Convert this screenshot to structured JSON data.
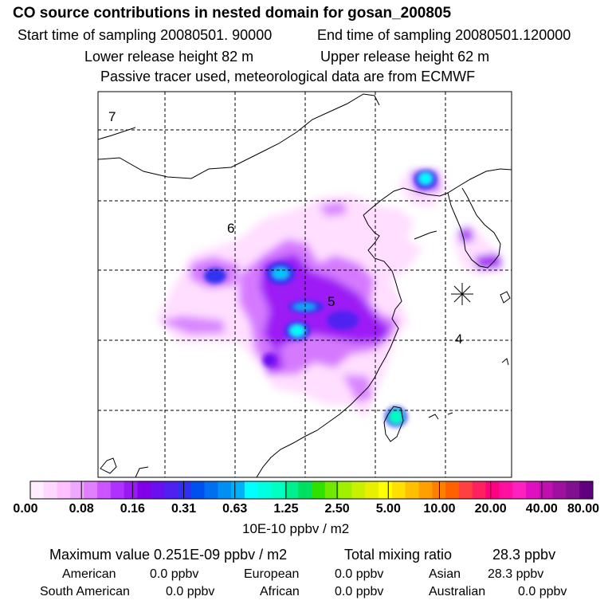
{
  "header": {
    "title": "CO  source contributions in nested domain for gosan_200805",
    "start_label": "Start time of sampling 20080501. 90000",
    "end_label": "End time of sampling 20080501.120000",
    "lower_label": "Lower release height   82 m",
    "upper_label": "Upper release height   62 m",
    "tracer_note": "Passive tracer used, meteorological data are from ECMWF"
  },
  "map": {
    "region_labels": [
      "7",
      "6",
      "5",
      "4"
    ],
    "receptor_symbol": "star-marker-icon"
  },
  "legend": {
    "ticks": [
      "0.00",
      "0.08",
      "0.16",
      "0.31",
      "0.63",
      "1.25",
      "2.50",
      "5.00",
      "10.00",
      "20.00",
      "40.00",
      "80.00"
    ],
    "units": "10E-10 ppbv / m2",
    "colors": [
      "#ffeeff",
      "#ffd8ff",
      "#ffc0ff",
      "#f0a8ff",
      "#e080ff",
      "#cc55ff",
      "#b030ff",
      "#9a18f4",
      "#8000e8",
      "#6a10f0",
      "#5020f0",
      "#3030f0",
      "#0050f0",
      "#0070f0",
      "#0090f4",
      "#00b0f8",
      "#00ffff",
      "#00ffe0",
      "#00ffc0",
      "#00f090",
      "#00e060",
      "#30e000",
      "#70e800",
      "#a0f000",
      "#c8f000",
      "#e8f000",
      "#ffff00",
      "#ffe000",
      "#ffc000",
      "#ffa000",
      "#ff8000",
      "#ff6000",
      "#ff4040",
      "#ff2060",
      "#ff0080",
      "#ff10a0",
      "#ff20c0",
      "#e010c0",
      "#c010b0",
      "#a010a0",
      "#801090",
      "#600080"
    ]
  },
  "summary": {
    "max_label": "Maximum value  0.251E-09 ppbv / m2",
    "total_label": "Total mixing ratio",
    "total_value": "28.3 ppbv",
    "american_label": "American",
    "american_value": "0.0 ppbv",
    "european_label": "European",
    "european_value": "0.0 ppbv",
    "asian_label": "Asian",
    "asian_value": "28.3 ppbv",
    "south_american_label": "South American",
    "south_american_value": "0.0 ppbv",
    "african_label": "African",
    "african_value": "0.0 ppbv",
    "australian_label": "Australian",
    "australian_value": "0.0 ppbv"
  }
}
